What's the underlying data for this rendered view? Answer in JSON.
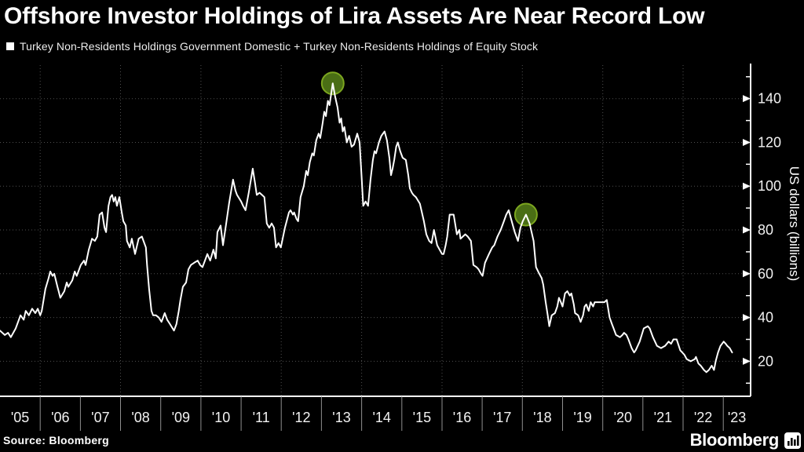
{
  "page": {
    "title": "Offshore Investor Holdings of Lira Assets Are Near Record Low",
    "source": "Source: Bloomberg",
    "brand": "Bloomberg"
  },
  "legend": {
    "marker": "square-icon",
    "marker_color": "#ffffff",
    "label": "Turkey Non-Residents Holdings Government Domestic + Turkey Non-Residents Holdings of Equity Stock"
  },
  "chart_data": {
    "type": "line",
    "title": "Offshore Investor Holdings of Lira Assets Are Near Record Low",
    "xlabel": "",
    "ylabel": "US dollars (billions)",
    "legend_position": "top-left",
    "grid": true,
    "xlim": [
      2005,
      2023.68
    ],
    "ylim": [
      4,
      155.3
    ],
    "x_tick_years": [
      2005,
      2006,
      2007,
      2008,
      2009,
      2010,
      2011,
      2012,
      2013,
      2014,
      2015,
      2016,
      2017,
      2018,
      2019,
      2020,
      2021,
      2022,
      2023
    ],
    "x_tick_labels": [
      "'05",
      "'06",
      "'07",
      "'08",
      "'09",
      "'10",
      "'11",
      "'12",
      "'13",
      "'14",
      "'15",
      "'16",
      "'17",
      "'18",
      "'19",
      "'20",
      "'21",
      "'22",
      "'23"
    ],
    "y_ticks": [
      20,
      40,
      60,
      80,
      100,
      120,
      140
    ],
    "y_minor_ticks": [
      10,
      30,
      50,
      70,
      90,
      110,
      130,
      150
    ],
    "grid_vertical_years": [
      2006,
      2008,
      2010,
      2012,
      2014,
      2016,
      2018,
      2020,
      2022
    ],
    "colors": {
      "background": "#000000",
      "line": "#ffffff",
      "grid": "#4f4f4f",
      "highlight_fill": "#4a6e15",
      "highlight_stroke": "#7ca61f"
    },
    "highlight_points": [
      {
        "t": 2013.28,
        "v": 147,
        "meaning": "record high"
      },
      {
        "t": 2018.09,
        "v": 87,
        "meaning": "2018 local peak"
      }
    ],
    "series": [
      {
        "name": "Turkey Non-Residents Holdings Government Domestic + Turkey Non-Residents Holdings of Equity Stock",
        "color": "#ffffff",
        "points": [
          [
            2005.0,
            34
          ],
          [
            2005.12,
            32
          ],
          [
            2005.2,
            33
          ],
          [
            2005.27,
            31
          ],
          [
            2005.39,
            35
          ],
          [
            2005.51,
            41
          ],
          [
            2005.59,
            39
          ],
          [
            2005.64,
            43
          ],
          [
            2005.72,
            41
          ],
          [
            2005.8,
            44
          ],
          [
            2005.88,
            42
          ],
          [
            2005.94,
            44
          ],
          [
            2006.0,
            41
          ],
          [
            2006.04,
            43
          ],
          [
            2006.13,
            53
          ],
          [
            2006.21,
            58
          ],
          [
            2006.25,
            61
          ],
          [
            2006.31,
            59
          ],
          [
            2006.35,
            60
          ],
          [
            2006.43,
            54
          ],
          [
            2006.46,
            52
          ],
          [
            2006.5,
            49
          ],
          [
            2006.6,
            52
          ],
          [
            2006.66,
            56
          ],
          [
            2006.7,
            54
          ],
          [
            2006.8,
            57
          ],
          [
            2006.86,
            61
          ],
          [
            2006.91,
            59
          ],
          [
            2007.01,
            64
          ],
          [
            2007.09,
            66
          ],
          [
            2007.13,
            64
          ],
          [
            2007.21,
            71
          ],
          [
            2007.29,
            76
          ],
          [
            2007.36,
            75
          ],
          [
            2007.42,
            77
          ],
          [
            2007.48,
            87
          ],
          [
            2007.54,
            88
          ],
          [
            2007.6,
            81
          ],
          [
            2007.64,
            79
          ],
          [
            2007.7,
            91
          ],
          [
            2007.75,
            95
          ],
          [
            2007.79,
            96
          ],
          [
            2007.83,
            93
          ],
          [
            2007.87,
            95
          ],
          [
            2007.91,
            91
          ],
          [
            2007.97,
            95
          ],
          [
            2008.03,
            88
          ],
          [
            2008.07,
            84
          ],
          [
            2008.13,
            82
          ],
          [
            2008.16,
            75
          ],
          [
            2008.23,
            72
          ],
          [
            2008.28,
            76
          ],
          [
            2008.36,
            69
          ],
          [
            2008.45,
            76
          ],
          [
            2008.53,
            77
          ],
          [
            2008.63,
            72
          ],
          [
            2008.66,
            64
          ],
          [
            2008.71,
            53
          ],
          [
            2008.77,
            43
          ],
          [
            2008.81,
            41
          ],
          [
            2008.88,
            41
          ],
          [
            2008.95,
            40
          ],
          [
            2009.02,
            38
          ],
          [
            2009.1,
            42
          ],
          [
            2009.16,
            39
          ],
          [
            2009.23,
            37
          ],
          [
            2009.33,
            34
          ],
          [
            2009.39,
            37
          ],
          [
            2009.45,
            43
          ],
          [
            2009.49,
            48
          ],
          [
            2009.55,
            54
          ],
          [
            2009.63,
            56
          ],
          [
            2009.69,
            62
          ],
          [
            2009.75,
            64
          ],
          [
            2009.83,
            65
          ],
          [
            2009.92,
            66
          ],
          [
            2009.98,
            64
          ],
          [
            2010.04,
            63
          ],
          [
            2010.1,
            66
          ],
          [
            2010.16,
            69
          ],
          [
            2010.23,
            66
          ],
          [
            2010.31,
            71
          ],
          [
            2010.37,
            67
          ],
          [
            2010.41,
            79
          ],
          [
            2010.49,
            82
          ],
          [
            2010.55,
            73
          ],
          [
            2010.63,
            83
          ],
          [
            2010.7,
            92
          ],
          [
            2010.8,
            103
          ],
          [
            2010.86,
            98
          ],
          [
            2010.9,
            96
          ],
          [
            2011.0,
            93
          ],
          [
            2011.05,
            91
          ],
          [
            2011.11,
            89
          ],
          [
            2011.19,
            97
          ],
          [
            2011.29,
            108
          ],
          [
            2011.35,
            101
          ],
          [
            2011.39,
            96
          ],
          [
            2011.46,
            97
          ],
          [
            2011.52,
            96
          ],
          [
            2011.58,
            95
          ],
          [
            2011.64,
            83
          ],
          [
            2011.7,
            81
          ],
          [
            2011.76,
            83
          ],
          [
            2011.82,
            81
          ],
          [
            2011.87,
            72
          ],
          [
            2011.93,
            74
          ],
          [
            2011.99,
            72
          ],
          [
            2012.09,
            81
          ],
          [
            2012.19,
            88
          ],
          [
            2012.23,
            89
          ],
          [
            2012.29,
            87
          ],
          [
            2012.32,
            88
          ],
          [
            2012.38,
            85
          ],
          [
            2012.42,
            84
          ],
          [
            2012.48,
            95
          ],
          [
            2012.56,
            100
          ],
          [
            2012.62,
            107
          ],
          [
            2012.66,
            105
          ],
          [
            2012.71,
            111
          ],
          [
            2012.77,
            115
          ],
          [
            2012.81,
            114
          ],
          [
            2012.87,
            121
          ],
          [
            2012.93,
            124
          ],
          [
            2012.97,
            122
          ],
          [
            2013.03,
            129
          ],
          [
            2013.07,
            134
          ],
          [
            2013.11,
            132
          ],
          [
            2013.16,
            139
          ],
          [
            2013.2,
            137
          ],
          [
            2013.28,
            147
          ],
          [
            2013.34,
            141
          ],
          [
            2013.4,
            136
          ],
          [
            2013.45,
            129
          ],
          [
            2013.49,
            131
          ],
          [
            2013.53,
            125
          ],
          [
            2013.57,
            127
          ],
          [
            2013.63,
            120
          ],
          [
            2013.69,
            123
          ],
          [
            2013.75,
            118
          ],
          [
            2013.81,
            119
          ],
          [
            2013.89,
            124
          ],
          [
            2013.95,
            120
          ],
          [
            2014.0,
            104
          ],
          [
            2014.04,
            91
          ],
          [
            2014.1,
            93
          ],
          [
            2014.16,
            91
          ],
          [
            2014.22,
            103
          ],
          [
            2014.28,
            112
          ],
          [
            2014.32,
            116
          ],
          [
            2014.36,
            115
          ],
          [
            2014.43,
            120
          ],
          [
            2014.49,
            123
          ],
          [
            2014.57,
            125
          ],
          [
            2014.63,
            121
          ],
          [
            2014.69,
            113
          ],
          [
            2014.73,
            105
          ],
          [
            2014.77,
            108
          ],
          [
            2014.81,
            112
          ],
          [
            2014.86,
            118
          ],
          [
            2014.9,
            120
          ],
          [
            2014.96,
            116
          ],
          [
            2015.02,
            113
          ],
          [
            2015.1,
            112
          ],
          [
            2015.16,
            105
          ],
          [
            2015.2,
            99
          ],
          [
            2015.25,
            97
          ],
          [
            2015.29,
            96
          ],
          [
            2015.35,
            95
          ],
          [
            2015.45,
            92
          ],
          [
            2015.55,
            84
          ],
          [
            2015.61,
            78
          ],
          [
            2015.68,
            75
          ],
          [
            2015.74,
            74
          ],
          [
            2015.8,
            80
          ],
          [
            2015.88,
            73
          ],
          [
            2015.94,
            71
          ],
          [
            2016.0,
            69
          ],
          [
            2016.04,
            69
          ],
          [
            2016.09,
            73
          ],
          [
            2016.13,
            77
          ],
          [
            2016.19,
            87
          ],
          [
            2016.25,
            87
          ],
          [
            2016.29,
            87
          ],
          [
            2016.37,
            78
          ],
          [
            2016.43,
            80
          ],
          [
            2016.46,
            76
          ],
          [
            2016.52,
            77
          ],
          [
            2016.58,
            78
          ],
          [
            2016.64,
            77
          ],
          [
            2016.72,
            75
          ],
          [
            2016.78,
            64
          ],
          [
            2016.86,
            63
          ],
          [
            2016.91,
            62
          ],
          [
            2016.97,
            60
          ],
          [
            2017.01,
            59
          ],
          [
            2017.07,
            65
          ],
          [
            2017.17,
            69
          ],
          [
            2017.25,
            72
          ],
          [
            2017.3,
            73
          ],
          [
            2017.38,
            77
          ],
          [
            2017.46,
            80
          ],
          [
            2017.54,
            84
          ],
          [
            2017.6,
            87
          ],
          [
            2017.66,
            89
          ],
          [
            2017.75,
            83
          ],
          [
            2017.81,
            79
          ],
          [
            2017.89,
            75
          ],
          [
            2017.95,
            81
          ],
          [
            2018.01,
            84
          ],
          [
            2018.09,
            87
          ],
          [
            2018.18,
            83
          ],
          [
            2018.28,
            75
          ],
          [
            2018.34,
            63
          ],
          [
            2018.42,
            60
          ],
          [
            2018.48,
            58
          ],
          [
            2018.52,
            55
          ],
          [
            2018.58,
            47
          ],
          [
            2018.63,
            41
          ],
          [
            2018.67,
            36
          ],
          [
            2018.73,
            41
          ],
          [
            2018.81,
            42
          ],
          [
            2018.87,
            45
          ],
          [
            2018.91,
            49
          ],
          [
            2018.96,
            47
          ],
          [
            2019.0,
            45
          ],
          [
            2019.06,
            51
          ],
          [
            2019.12,
            52
          ],
          [
            2019.18,
            50
          ],
          [
            2019.22,
            51
          ],
          [
            2019.28,
            46
          ],
          [
            2019.31,
            42
          ],
          [
            2019.39,
            41
          ],
          [
            2019.45,
            38
          ],
          [
            2019.51,
            41
          ],
          [
            2019.55,
            45
          ],
          [
            2019.59,
            46
          ],
          [
            2019.65,
            43
          ],
          [
            2019.7,
            47
          ],
          [
            2019.76,
            45
          ],
          [
            2019.8,
            47
          ],
          [
            2019.88,
            47
          ],
          [
            2019.94,
            47
          ],
          [
            2019.98,
            47
          ],
          [
            2020.04,
            47
          ],
          [
            2020.1,
            48
          ],
          [
            2020.17,
            40
          ],
          [
            2020.23,
            37
          ],
          [
            2020.27,
            35
          ],
          [
            2020.33,
            32
          ],
          [
            2020.43,
            31
          ],
          [
            2020.49,
            32
          ],
          [
            2020.53,
            33
          ],
          [
            2020.59,
            32
          ],
          [
            2020.64,
            30
          ],
          [
            2020.72,
            26
          ],
          [
            2020.78,
            24
          ],
          [
            2020.82,
            25
          ],
          [
            2020.92,
            29
          ],
          [
            2021.02,
            35
          ],
          [
            2021.12,
            36
          ],
          [
            2021.17,
            35
          ],
          [
            2021.25,
            31
          ],
          [
            2021.35,
            27
          ],
          [
            2021.45,
            26
          ],
          [
            2021.55,
            27
          ],
          [
            2021.64,
            29
          ],
          [
            2021.7,
            28
          ],
          [
            2021.76,
            30
          ],
          [
            2021.84,
            30
          ],
          [
            2021.93,
            25
          ],
          [
            2022.03,
            23
          ],
          [
            2022.09,
            21
          ],
          [
            2022.19,
            20
          ],
          [
            2022.29,
            21
          ],
          [
            2022.32,
            22
          ],
          [
            2022.38,
            19
          ],
          [
            2022.44,
            18
          ],
          [
            2022.52,
            16
          ],
          [
            2022.58,
            15
          ],
          [
            2022.64,
            16
          ],
          [
            2022.71,
            18
          ],
          [
            2022.77,
            16
          ],
          [
            2022.81,
            20
          ],
          [
            2022.87,
            24
          ],
          [
            2022.93,
            27
          ],
          [
            2023.01,
            29
          ],
          [
            2023.06,
            28
          ],
          [
            2023.1,
            27
          ],
          [
            2023.16,
            26
          ],
          [
            2023.22,
            24
          ]
        ]
      }
    ]
  }
}
